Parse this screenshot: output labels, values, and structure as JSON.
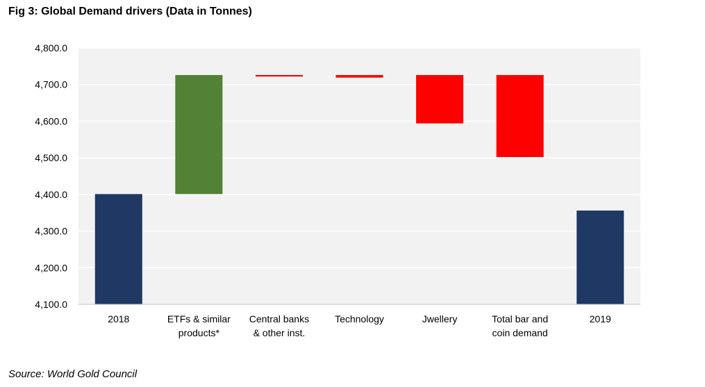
{
  "figure": {
    "title": "Fig 3: Global Demand drivers (Data in Tonnes)",
    "source": "Source: World Gold Council"
  },
  "chart_data": {
    "type": "bar",
    "subtype": "waterfall",
    "title": "",
    "xlabel": "",
    "ylabel": "",
    "ylim": [
      4100,
      4800
    ],
    "yticks": [
      4100,
      4200,
      4300,
      4400,
      4500,
      4600,
      4700,
      4800
    ],
    "ytick_labels": [
      "4,100.0",
      "4,200.0",
      "4,300.0",
      "4,400.0",
      "4,500.0",
      "4,600.0",
      "4,700.0",
      "4,800.0"
    ],
    "grid": true,
    "plot_background": "#f2f2f2",
    "colors": {
      "total": "#1f3864",
      "increase": "#538135",
      "decrease": "#ff0000"
    },
    "categories": [
      [
        "2018"
      ],
      [
        "ETFs & similar",
        "products*"
      ],
      [
        "Central banks",
        "& other inst."
      ],
      [
        "Technology"
      ],
      [
        "Jwellery"
      ],
      [
        "Total bar and",
        "coin demand"
      ],
      [
        "2019"
      ]
    ],
    "bars": [
      {
        "kind": "total",
        "start": 4100,
        "end": 4401
      },
      {
        "kind": "increase",
        "start": 4401,
        "end": 4726
      },
      {
        "kind": "decrease",
        "start": 4726,
        "end": 4722
      },
      {
        "kind": "decrease",
        "start": 4726,
        "end": 4719
      },
      {
        "kind": "decrease",
        "start": 4726,
        "end": 4594
      },
      {
        "kind": "decrease",
        "start": 4726,
        "end": 4502
      },
      {
        "kind": "total",
        "start": 4100,
        "end": 4356
      }
    ]
  }
}
